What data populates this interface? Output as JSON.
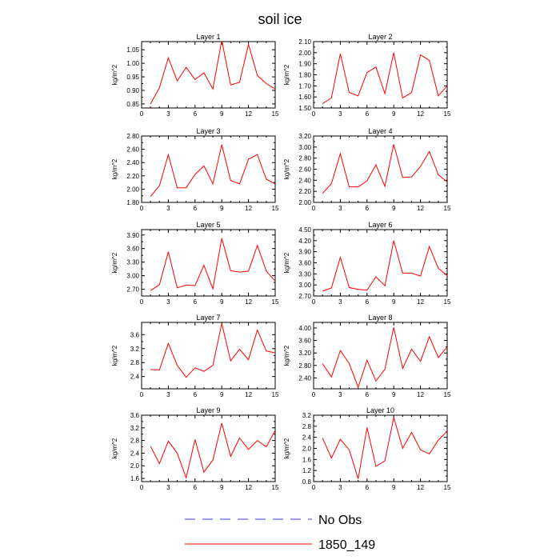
{
  "title": "soil ice",
  "legend": {
    "items": [
      {
        "label": "No Obs",
        "color": "#3b3bd6",
        "dash": true
      },
      {
        "label": "1850_149",
        "color": "#ff0000",
        "dash": false
      }
    ]
  },
  "chart_data": [
    {
      "type": "line",
      "title": "Layer 1",
      "xlabel": "",
      "ylabel": "kg/m^2",
      "x": [
        1,
        2,
        3,
        4,
        5,
        6,
        7,
        8,
        9,
        10,
        11,
        12,
        13,
        14,
        15
      ],
      "xlim": [
        0,
        15
      ],
      "xticks": [
        0,
        3,
        6,
        9,
        12,
        15
      ],
      "xtick_labels": [
        "0",
        "3",
        "6",
        "9",
        "12",
        "15"
      ],
      "ylim": [
        0.835,
        1.08
      ],
      "yticks": [
        0.85,
        0.9,
        0.95,
        1.0,
        1.05
      ],
      "ytick_labels": [
        "0.85",
        "0.90",
        "0.95",
        "1.00",
        "1.05"
      ],
      "series": [
        {
          "color": "#ff0000",
          "values": [
            0.85,
            0.91,
            1.02,
            0.935,
            0.985,
            0.94,
            0.965,
            0.905,
            1.085,
            0.92,
            0.93,
            1.07,
            0.955,
            0.925,
            0.905
          ]
        }
      ]
    },
    {
      "type": "line",
      "title": "Layer 2",
      "xlabel": "",
      "ylabel": "kg/m^2",
      "x": [
        1,
        2,
        3,
        4,
        5,
        6,
        7,
        8,
        9,
        10,
        11,
        12,
        13,
        14,
        15
      ],
      "xlim": [
        0,
        15
      ],
      "xticks": [
        0,
        3,
        6,
        9,
        12,
        15
      ],
      "xtick_labels": [
        "0",
        "3",
        "6",
        "9",
        "12",
        "15"
      ],
      "ylim": [
        1.5,
        2.1
      ],
      "yticks": [
        1.5,
        1.6,
        1.7,
        1.8,
        1.9,
        2.0,
        2.1
      ],
      "ytick_labels": [
        "1.50",
        "1.60",
        "1.70",
        "1.80",
        "1.90",
        "2.00",
        "2.10"
      ],
      "series": [
        {
          "color": "#ff0000",
          "values": [
            1.54,
            1.59,
            1.99,
            1.64,
            1.61,
            1.82,
            1.87,
            1.63,
            2.0,
            1.59,
            1.64,
            1.98,
            1.93,
            1.61,
            1.7
          ]
        }
      ]
    },
    {
      "type": "line",
      "title": "Layer 3",
      "xlabel": "",
      "ylabel": "kg/m^2",
      "x": [
        1,
        2,
        3,
        4,
        5,
        6,
        7,
        8,
        9,
        10,
        11,
        12,
        13,
        14,
        15
      ],
      "xlim": [
        0,
        15
      ],
      "xticks": [
        0,
        3,
        6,
        9,
        12,
        15
      ],
      "xtick_labels": [
        "0",
        "3",
        "6",
        "9",
        "12",
        "15"
      ],
      "ylim": [
        1.8,
        2.8
      ],
      "yticks": [
        1.8,
        2.0,
        2.2,
        2.4,
        2.6,
        2.8
      ],
      "ytick_labels": [
        "1.80",
        "2.00",
        "2.20",
        "2.40",
        "2.60",
        "2.80"
      ],
      "series": [
        {
          "color": "#ff0000",
          "values": [
            1.89,
            2.05,
            2.52,
            2.02,
            2.02,
            2.22,
            2.35,
            2.08,
            2.67,
            2.13,
            2.08,
            2.45,
            2.52,
            2.15,
            2.08
          ]
        }
      ]
    },
    {
      "type": "line",
      "title": "Layer 4",
      "xlabel": "",
      "ylabel": "kg/m^2",
      "x": [
        1,
        2,
        3,
        4,
        5,
        6,
        7,
        8,
        9,
        10,
        11,
        12,
        13,
        14,
        15
      ],
      "xlim": [
        0,
        15
      ],
      "xticks": [
        0,
        3,
        6,
        9,
        12,
        15
      ],
      "xtick_labels": [
        "0",
        "3",
        "6",
        "9",
        "12",
        "15"
      ],
      "ylim": [
        2.0,
        3.2
      ],
      "yticks": [
        2.0,
        2.2,
        2.4,
        2.6,
        2.8,
        3.0,
        3.2
      ],
      "ytick_labels": [
        "2.00",
        "2.20",
        "2.40",
        "2.60",
        "2.80",
        "3.00",
        "3.20"
      ],
      "series": [
        {
          "color": "#ff0000",
          "values": [
            2.16,
            2.34,
            2.88,
            2.28,
            2.28,
            2.39,
            2.68,
            2.29,
            3.05,
            2.45,
            2.46,
            2.65,
            2.92,
            2.5,
            2.37
          ]
        }
      ]
    },
    {
      "type": "line",
      "title": "Layer 5",
      "xlabel": "",
      "ylabel": "kg/m^2",
      "x": [
        1,
        2,
        3,
        4,
        5,
        6,
        7,
        8,
        9,
        10,
        11,
        12,
        13,
        14,
        15
      ],
      "xlim": [
        0,
        15
      ],
      "xticks": [
        0,
        3,
        6,
        9,
        12,
        15
      ],
      "xtick_labels": [
        "0",
        "3",
        "6",
        "9",
        "12",
        "15"
      ],
      "ylim": [
        2.55,
        4.02
      ],
      "yticks": [
        2.7,
        3.0,
        3.3,
        3.6,
        3.9
      ],
      "ytick_labels": [
        "2.70",
        "3.00",
        "3.30",
        "3.60",
        "3.90"
      ],
      "series": [
        {
          "color": "#ff0000",
          "values": [
            2.67,
            2.8,
            3.53,
            2.73,
            2.79,
            2.78,
            3.23,
            2.71,
            3.83,
            3.11,
            3.08,
            3.1,
            3.67,
            3.1,
            2.88
          ]
        }
      ]
    },
    {
      "type": "line",
      "title": "Layer 6",
      "xlabel": "",
      "ylabel": "kg/m^2",
      "x": [
        1,
        2,
        3,
        4,
        5,
        6,
        7,
        8,
        9,
        10,
        11,
        12,
        13,
        14,
        15
      ],
      "xlim": [
        0,
        15
      ],
      "xticks": [
        0,
        3,
        6,
        9,
        12,
        15
      ],
      "xtick_labels": [
        "0",
        "3",
        "6",
        "9",
        "12",
        "15"
      ],
      "ylim": [
        2.7,
        4.5
      ],
      "yticks": [
        2.7,
        3.0,
        3.3,
        3.6,
        3.9,
        4.2,
        4.5
      ],
      "ytick_labels": [
        "2.70",
        "3.00",
        "3.30",
        "3.60",
        "3.90",
        "4.20",
        "4.50"
      ],
      "series": [
        {
          "color": "#ff0000",
          "values": [
            2.83,
            2.92,
            3.75,
            2.93,
            2.88,
            2.86,
            3.22,
            2.98,
            4.2,
            3.32,
            3.32,
            3.24,
            4.04,
            3.45,
            3.25
          ]
        }
      ]
    },
    {
      "type": "line",
      "title": "Layer 7",
      "xlabel": "",
      "ylabel": "kg/m^2",
      "x": [
        1,
        2,
        3,
        4,
        5,
        6,
        7,
        8,
        9,
        10,
        11,
        12,
        13,
        14,
        15
      ],
      "xlim": [
        0,
        15
      ],
      "xticks": [
        0,
        3,
        6,
        9,
        12,
        15
      ],
      "xtick_labels": [
        "0",
        "3",
        "6",
        "9",
        "12",
        "15"
      ],
      "ylim": [
        2.05,
        3.95
      ],
      "yticks": [
        2.4,
        2.8,
        3.2,
        3.6
      ],
      "ytick_labels": [
        "2.4",
        "2.8",
        "3.2",
        "3.6"
      ],
      "series": [
        {
          "color": "#ff0000",
          "values": [
            2.6,
            2.59,
            3.35,
            2.72,
            2.38,
            2.65,
            2.55,
            2.72,
            3.92,
            2.85,
            3.18,
            2.88,
            3.73,
            3.13,
            3.08
          ]
        }
      ]
    },
    {
      "type": "line",
      "title": "Layer 8",
      "xlabel": "",
      "ylabel": "kg/m^2",
      "x": [
        1,
        2,
        3,
        4,
        5,
        6,
        7,
        8,
        9,
        10,
        11,
        12,
        13,
        14,
        15
      ],
      "xlim": [
        0,
        15
      ],
      "xticks": [
        0,
        3,
        6,
        9,
        12,
        15
      ],
      "xtick_labels": [
        "0",
        "3",
        "6",
        "9",
        "12",
        "15"
      ],
      "ylim": [
        2.05,
        4.18
      ],
      "yticks": [
        2.4,
        2.8,
        3.2,
        3.6,
        4.0
      ],
      "ytick_labels": [
        "2.40",
        "2.80",
        "3.20",
        "3.60",
        "4.00"
      ],
      "series": [
        {
          "color": "#ff0000",
          "values": [
            2.86,
            2.43,
            3.28,
            2.86,
            2.1,
            2.97,
            2.3,
            2.68,
            4.02,
            2.7,
            3.32,
            2.93,
            3.72,
            3.05,
            3.4
          ]
        }
      ]
    },
    {
      "type": "line",
      "title": "Layer 9",
      "xlabel": "",
      "ylabel": "kg/m^2",
      "x": [
        1,
        2,
        3,
        4,
        5,
        6,
        7,
        8,
        9,
        10,
        11,
        12,
        13,
        14,
        15
      ],
      "xlim": [
        0,
        15
      ],
      "xticks": [
        0,
        3,
        6,
        9,
        12,
        15
      ],
      "xtick_labels": [
        "0",
        "3",
        "6",
        "9",
        "12",
        "15"
      ],
      "ylim": [
        1.5,
        3.6
      ],
      "yticks": [
        1.6,
        2.0,
        2.4,
        2.8,
        3.2,
        3.6
      ],
      "ytick_labels": [
        "1.6",
        "2.0",
        "2.4",
        "2.8",
        "3.2",
        "3.6"
      ],
      "series": [
        {
          "color": "#ff0000",
          "values": [
            2.62,
            2.07,
            2.78,
            2.4,
            1.62,
            2.83,
            1.8,
            2.18,
            3.35,
            2.3,
            2.88,
            2.52,
            2.8,
            2.6,
            3.12
          ]
        }
      ]
    },
    {
      "type": "line",
      "title": "Layer 10",
      "xlabel": "",
      "ylabel": "kg/m^2",
      "x": [
        1,
        2,
        3,
        4,
        5,
        6,
        7,
        8,
        9,
        10,
        11,
        12,
        13,
        14,
        15
      ],
      "xlim": [
        0,
        15
      ],
      "xticks": [
        0,
        3,
        6,
        9,
        12,
        15
      ],
      "xtick_labels": [
        "0",
        "3",
        "6",
        "9",
        "12",
        "15"
      ],
      "ylim": [
        0.8,
        3.2
      ],
      "yticks": [
        0.8,
        1.2,
        1.6,
        2.0,
        2.4,
        2.8,
        3.2
      ],
      "ytick_labels": [
        "0.8",
        "1.2",
        "1.6",
        "2.0",
        "2.4",
        "2.8",
        "3.2"
      ],
      "series": [
        {
          "color": "#ff0000",
          "values": [
            2.38,
            1.65,
            2.33,
            1.95,
            0.9,
            2.75,
            1.35,
            1.55,
            3.12,
            2.0,
            2.58,
            1.95,
            1.8,
            2.3,
            2.62
          ]
        }
      ]
    }
  ]
}
